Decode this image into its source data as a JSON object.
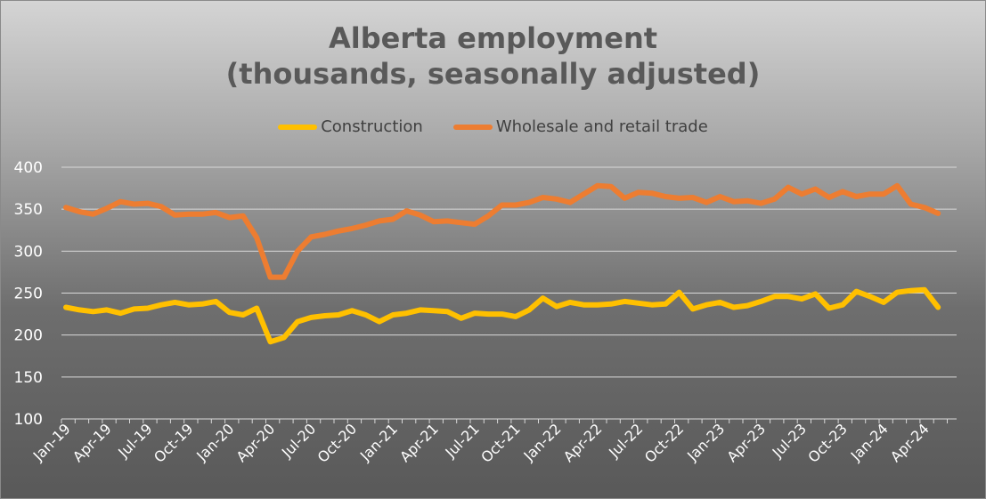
{
  "chart_data": {
    "type": "line",
    "title": [
      "Alberta employment",
      "(thousands, seasonally adjusted)"
    ],
    "ylim": [
      100,
      400
    ],
    "yticks": [
      "100",
      "150",
      "200",
      "250",
      "300",
      "350",
      "400"
    ],
    "grid": true,
    "legend_position": "top",
    "x": [
      "Jan-19",
      "Feb-19",
      "Mar-19",
      "Apr-19",
      "May-19",
      "Jun-19",
      "Jul-19",
      "Aug-19",
      "Sep-19",
      "Oct-19",
      "Nov-19",
      "Dec-19",
      "Jan-20",
      "Feb-20",
      "Mar-20",
      "Apr-20",
      "May-20",
      "Jun-20",
      "Jul-20",
      "Aug-20",
      "Sep-20",
      "Oct-20",
      "Nov-20",
      "Dec-20",
      "Jan-21",
      "Feb-21",
      "Mar-21",
      "Apr-21",
      "May-21",
      "Jun-21",
      "Jul-21",
      "Aug-21",
      "Sep-21",
      "Oct-21",
      "Nov-21",
      "Dec-21",
      "Jan-22",
      "Feb-22",
      "Mar-22",
      "Apr-22",
      "May-22",
      "Jun-22",
      "Jul-22",
      "Aug-22",
      "Sep-22",
      "Oct-22",
      "Nov-22",
      "Dec-22",
      "Jan-23",
      "Feb-23",
      "Mar-23",
      "Apr-23",
      "May-23",
      "Jun-23",
      "Jul-23",
      "Aug-23",
      "Sep-23",
      "Oct-23",
      "Nov-23",
      "Dec-23",
      "Jan-24",
      "Feb-24",
      "Mar-24",
      "Apr-24",
      "May-24"
    ],
    "x_tick_labels": [
      "Jan-19",
      "Apr-19",
      "Jul-19",
      "Oct-19",
      "Jan-20",
      "Apr-20",
      "Jul-20",
      "Oct-20",
      "Jan-21",
      "Apr-21",
      "Jul-21",
      "Oct-21",
      "Jan-22",
      "Apr-22",
      "Jul-22",
      "Oct-22",
      "Jan-23",
      "Apr-23",
      "Jul-23",
      "Oct-23",
      "Jan-24",
      "Apr-24"
    ],
    "series": [
      {
        "name": "Construction",
        "color": "#ffc000",
        "values": [
          233,
          230,
          228,
          230,
          226,
          231,
          232,
          236,
          239,
          236,
          237,
          240,
          227,
          224,
          232,
          192,
          197,
          216,
          221,
          223,
          224,
          229,
          224,
          216,
          224,
          226,
          230,
          229,
          228,
          220,
          226,
          225,
          225,
          222,
          230,
          244,
          234,
          239,
          236,
          236,
          237,
          240,
          238,
          236,
          237,
          251,
          231,
          236,
          239,
          233,
          235,
          240,
          246,
          246,
          243,
          249,
          232,
          236,
          252,
          246,
          239,
          251,
          253,
          254,
          233
        ]
      },
      {
        "name": "Wholesale and retail trade",
        "color": "#ed7d31",
        "values": [
          352,
          347,
          344,
          351,
          359,
          356,
          357,
          353,
          343,
          344,
          344,
          346,
          340,
          342,
          316,
          269,
          269,
          300,
          317,
          320,
          324,
          327,
          331,
          336,
          338,
          348,
          343,
          335,
          336,
          334,
          332,
          342,
          355,
          355,
          358,
          364,
          362,
          358,
          368,
          378,
          377,
          363,
          370,
          369,
          365,
          363,
          364,
          358,
          365,
          359,
          360,
          357,
          362,
          376,
          368,
          374,
          364,
          371,
          365,
          368,
          368,
          378,
          356,
          352,
          345
        ]
      }
    ]
  }
}
